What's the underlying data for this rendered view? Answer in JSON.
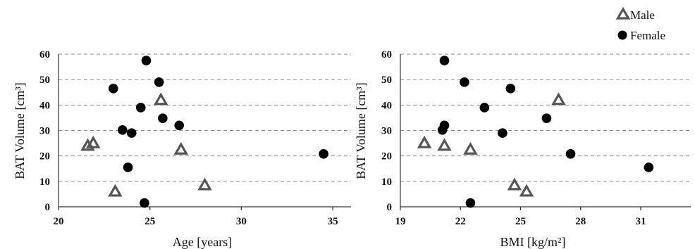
{
  "legend": [
    {
      "name": "Male",
      "marker": "triangle"
    },
    {
      "name": "Female",
      "marker": "circle"
    }
  ],
  "colors": {
    "male": "#555555",
    "female": "#000000",
    "grid": "#8a8a8a"
  },
  "chart_data": [
    {
      "type": "scatter",
      "title": "",
      "xlabel": "Age  [years]",
      "ylabel": "BAT Volume [cm³]",
      "xlim": [
        20,
        36
      ],
      "ylim": [
        0,
        60
      ],
      "xticks": [
        20,
        25,
        30,
        35
      ],
      "yticks": [
        0,
        10,
        20,
        30,
        40,
        50,
        60
      ],
      "grid": "horizontal dashed",
      "series": [
        {
          "name": "Male",
          "points": [
            [
              21.6,
              24
            ],
            [
              21.9,
              25
            ],
            [
              23.1,
              6
            ],
            [
              25.6,
              42
            ],
            [
              26.7,
              22.5
            ],
            [
              28.0,
              8.5
            ]
          ]
        },
        {
          "name": "Female",
          "points": [
            [
              23.0,
              46.5
            ],
            [
              23.5,
              30.2
            ],
            [
              23.8,
              15.5
            ],
            [
              24.0,
              29
            ],
            [
              24.5,
              39
            ],
            [
              24.7,
              1.5
            ],
            [
              24.8,
              57.5
            ],
            [
              25.5,
              49
            ],
            [
              25.7,
              34.8
            ],
            [
              26.6,
              32
            ],
            [
              34.5,
              20.8
            ]
          ]
        }
      ]
    },
    {
      "type": "scatter",
      "title": "",
      "xlabel": "BMI  [kg/m²]",
      "ylabel": "BAT Volume [cm³]",
      "xlim": [
        19,
        33.5
      ],
      "ylim": [
        0,
        60
      ],
      "xticks": [
        19,
        22,
        25,
        28,
        31
      ],
      "yticks": [
        0,
        10,
        20,
        30,
        40,
        50,
        60
      ],
      "grid": "horizontal dashed",
      "series": [
        {
          "name": "Male",
          "points": [
            [
              20.2,
              25
            ],
            [
              21.2,
              24
            ],
            [
              22.5,
              22.5
            ],
            [
              24.7,
              8.5
            ],
            [
              25.3,
              6
            ],
            [
              26.9,
              42
            ]
          ]
        },
        {
          "name": "Female",
          "points": [
            [
              21.1,
              30.2
            ],
            [
              21.2,
              57.5
            ],
            [
              21.2,
              32
            ],
            [
              22.2,
              49
            ],
            [
              22.5,
              1.5
            ],
            [
              23.2,
              39
            ],
            [
              24.1,
              29
            ],
            [
              24.5,
              46.5
            ],
            [
              26.3,
              34.8
            ],
            [
              27.5,
              20.8
            ],
            [
              31.4,
              15.5
            ]
          ]
        }
      ]
    }
  ]
}
